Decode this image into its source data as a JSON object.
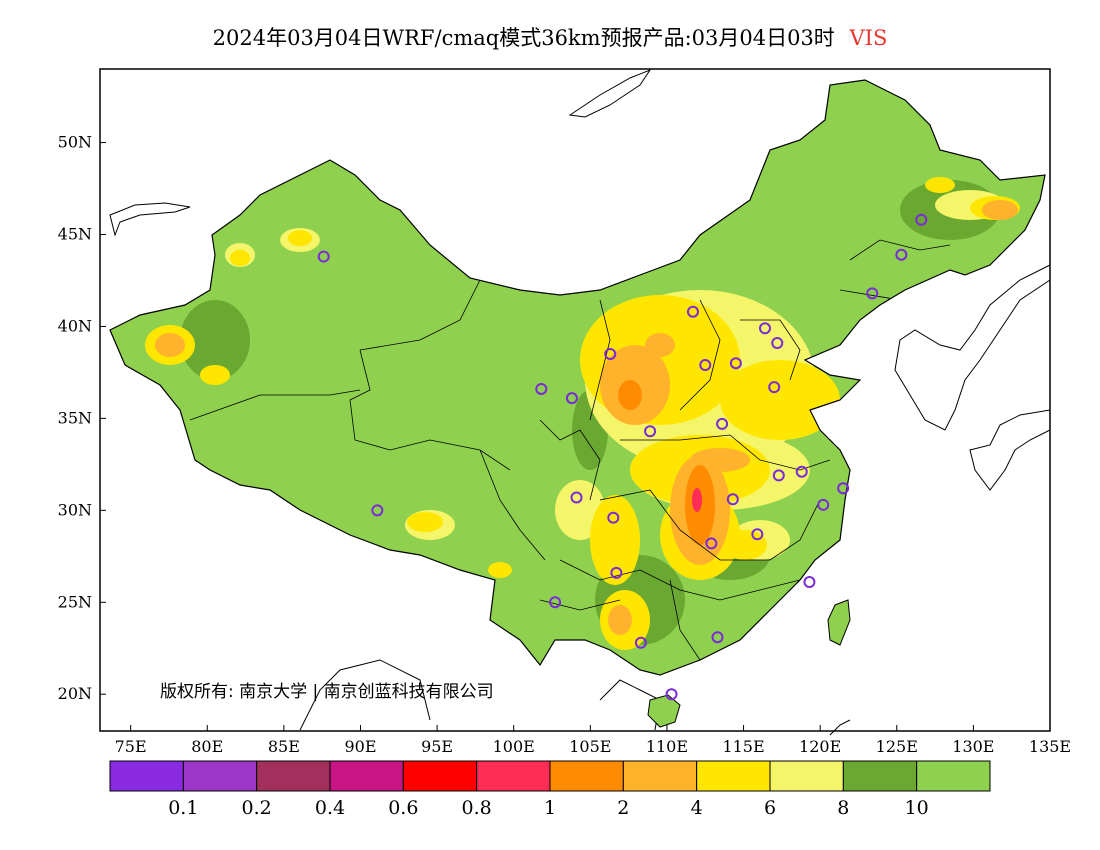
{
  "title": {
    "main": "2024年03月04日WRF/cmaq模式36km预报产品:03月04日03时",
    "variable": "VIS",
    "variable_color": "#e8362f"
  },
  "map": {
    "lon_range": [
      73,
      135
    ],
    "lat_range": [
      18,
      54
    ],
    "x_ticks": [
      "75E",
      "80E",
      "85E",
      "90E",
      "95E",
      "100E",
      "105E",
      "110E",
      "115E",
      "120E",
      "125E",
      "130E",
      "135E"
    ],
    "x_tick_values": [
      75,
      80,
      85,
      90,
      95,
      100,
      105,
      110,
      115,
      120,
      125,
      130,
      135
    ],
    "y_ticks": [
      "20N",
      "25N",
      "30N",
      "35N",
      "40N",
      "45N",
      "50N"
    ],
    "y_tick_values": [
      20,
      25,
      30,
      35,
      40,
      45,
      50
    ],
    "base_color": "#8fd04f",
    "stations": [
      [
        87.6,
        43.8
      ],
      [
        91.1,
        30.0
      ],
      [
        101.8,
        36.6
      ],
      [
        103.8,
        36.1
      ],
      [
        106.3,
        38.5
      ],
      [
        111.7,
        40.8
      ],
      [
        116.4,
        39.9
      ],
      [
        117.2,
        39.1
      ],
      [
        114.5,
        38.0
      ],
      [
        112.5,
        37.9
      ],
      [
        117.0,
        36.7
      ],
      [
        108.9,
        34.3
      ],
      [
        113.6,
        34.7
      ],
      [
        104.1,
        30.7
      ],
      [
        106.5,
        29.6
      ],
      [
        106.7,
        26.6
      ],
      [
        102.7,
        25.0
      ],
      [
        108.3,
        22.8
      ],
      [
        113.3,
        23.1
      ],
      [
        110.3,
        20.0
      ],
      [
        112.9,
        28.2
      ],
      [
        114.3,
        30.6
      ],
      [
        115.9,
        28.7
      ],
      [
        117.3,
        31.9
      ],
      [
        118.8,
        32.1
      ],
      [
        120.2,
        30.3
      ],
      [
        121.5,
        31.2
      ],
      [
        119.3,
        26.1
      ],
      [
        123.4,
        41.8
      ],
      [
        125.3,
        43.9
      ],
      [
        126.6,
        45.8
      ]
    ],
    "station_color": "#7a2bd6"
  },
  "legend": {
    "colors": [
      "#8a2be2",
      "#9b36c9",
      "#a3305c",
      "#c71585",
      "#ff0000",
      "#ff2d55",
      "#ff8c00",
      "#ffb22c",
      "#ffe600",
      "#f5f56a",
      "#6aa832",
      "#8fd04f"
    ],
    "labels": [
      "0.1",
      "0.2",
      "0.4",
      "0.6",
      "0.8",
      "1",
      "2",
      "4",
      "6",
      "8",
      "10"
    ]
  },
  "copyright": "版权所有: 南京大学 | 南京创蓝科技有限公司"
}
